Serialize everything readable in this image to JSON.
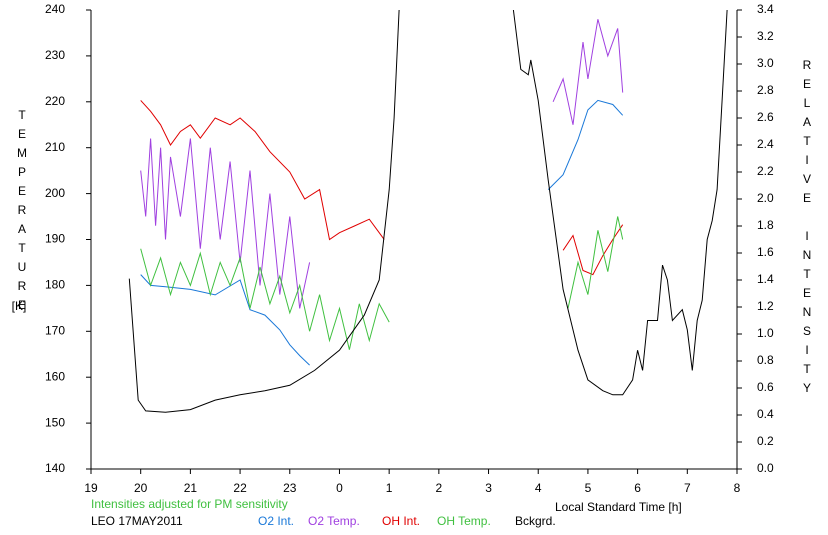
{
  "chart_data": {
    "type": "line",
    "ylabel": "TEMPERATURE",
    "yunit": "[K]",
    "y2label": "RELATIVE INTENSITY",
    "xlabel": "Local Standard Time [h]",
    "note": "Intensities adjusted for PM sensitivity",
    "station": "LEO 17MAY2011",
    "xlim": [
      19,
      32
    ],
    "xticks": [
      19,
      20,
      21,
      22,
      23,
      {
        "value": 24,
        "label": "0"
      },
      {
        "value": 25,
        "label": "1"
      },
      {
        "value": 26,
        "label": "2"
      },
      {
        "value": 27,
        "label": "3"
      },
      {
        "value": 28,
        "label": "4"
      },
      {
        "value": 29,
        "label": "5"
      },
      {
        "value": 30,
        "label": "6"
      },
      {
        "value": 31,
        "label": "7"
      },
      {
        "value": 32,
        "label": "8"
      }
    ],
    "ylim": [
      140,
      240
    ],
    "yticks": [
      140,
      150,
      160,
      170,
      180,
      190,
      200,
      210,
      220,
      230,
      240
    ],
    "y2lim": [
      0,
      3.4
    ],
    "y2ticks": [
      {
        "value": 0,
        "label": "0.0"
      },
      0.2,
      0.4,
      0.6,
      0.8,
      {
        "value": 1,
        "label": "1.0"
      },
      1.2,
      1.4,
      1.6,
      1.8,
      {
        "value": 2,
        "label": "2.0"
      },
      2.2,
      2.4,
      2.6,
      2.8,
      {
        "value": 3,
        "label": "3.0"
      },
      3.2,
      3.4
    ],
    "series": [
      {
        "name": "O2 Int.",
        "color": "#1a78d8",
        "axis": "y2",
        "x": [
          20.0,
          20.2,
          20.5,
          21.0,
          21.5,
          22.0,
          22.2,
          22.5,
          22.8,
          23.0,
          23.2,
          23.4,
          26.0,
          28.2,
          28.5,
          28.8,
          29.0,
          29.2,
          29.5,
          29.7
        ],
        "values": [
          1.44,
          1.36,
          1.35,
          1.33,
          1.29,
          1.4,
          1.18,
          1.14,
          1.03,
          0.92,
          0.84,
          0.77,
          null,
          2.07,
          2.18,
          2.44,
          2.66,
          2.73,
          2.7,
          2.62
        ]
      },
      {
        "name": "O2 Temp.",
        "color": "#a040e0",
        "axis": "y",
        "x": [
          20.0,
          20.1,
          20.2,
          20.3,
          20.4,
          20.5,
          20.6,
          20.8,
          21.0,
          21.2,
          21.4,
          21.6,
          21.8,
          22.0,
          22.2,
          22.4,
          22.6,
          22.8,
          23.0,
          23.2,
          23.4,
          26.0,
          28.3,
          28.5,
          28.7,
          28.9,
          29.0,
          29.2,
          29.4,
          29.6,
          29.7
        ],
        "values": [
          205,
          195,
          212,
          193,
          210,
          190,
          208,
          195,
          212,
          188,
          210,
          190,
          207,
          185,
          205,
          180,
          200,
          178,
          195,
          175,
          185,
          null,
          220,
          225,
          215,
          233,
          225,
          238,
          230,
          236,
          222
        ]
      },
      {
        "name": "OH Int.",
        "color": "#e00000",
        "axis": "y2",
        "x": [
          20.0,
          20.2,
          20.4,
          20.6,
          20.8,
          21.0,
          21.2,
          21.5,
          21.8,
          22.0,
          22.3,
          22.6,
          23.0,
          23.3,
          23.6,
          23.8,
          24.0,
          24.3,
          24.6,
          24.9,
          26.0,
          28.5,
          28.7,
          28.9,
          29.1,
          29.3,
          29.5,
          29.7
        ],
        "values": [
          2.73,
          2.65,
          2.55,
          2.4,
          2.5,
          2.55,
          2.45,
          2.6,
          2.55,
          2.6,
          2.5,
          2.35,
          2.2,
          2.0,
          2.07,
          1.7,
          1.75,
          1.8,
          1.85,
          1.7,
          null,
          1.62,
          1.73,
          1.47,
          1.44,
          1.58,
          1.7,
          1.81
        ]
      },
      {
        "name": "OH Temp.",
        "color": "#40c040",
        "axis": "y",
        "x": [
          20.0,
          20.2,
          20.4,
          20.6,
          20.8,
          21.0,
          21.2,
          21.4,
          21.6,
          21.8,
          22.0,
          22.2,
          22.4,
          22.6,
          22.8,
          23.0,
          23.2,
          23.4,
          23.6,
          23.8,
          24.0,
          24.2,
          24.4,
          24.6,
          24.8,
          25.0,
          26.0,
          28.6,
          28.8,
          29.0,
          29.2,
          29.4,
          29.6,
          29.7
        ],
        "values": [
          188,
          180,
          186,
          178,
          185,
          180,
          187,
          178,
          185,
          180,
          186,
          175,
          184,
          176,
          182,
          174,
          180,
          170,
          178,
          168,
          175,
          166,
          176,
          168,
          176,
          172,
          null,
          175,
          185,
          178,
          192,
          183,
          195,
          190
        ]
      },
      {
        "name": "Bckgrd.",
        "color": "#000000",
        "axis": "y2",
        "x": [
          19.77,
          19.95,
          20.1,
          20.5,
          21.0,
          21.5,
          22.0,
          22.5,
          23.0,
          23.5,
          24.0,
          24.5,
          24.8,
          25.0,
          25.1,
          25.2,
          26.0,
          27.5,
          27.65,
          27.8,
          27.85,
          28.0,
          28.2,
          28.5,
          28.8,
          29.0,
          29.3,
          29.5,
          29.7,
          29.9,
          30.0,
          30.1,
          30.2,
          30.4,
          30.5,
          30.6,
          30.7,
          30.9,
          31.0,
          31.1,
          31.2,
          31.3,
          31.4,
          31.5,
          31.6,
          31.7,
          31.8
        ],
        "values": [
          1.41,
          0.51,
          0.43,
          0.42,
          0.44,
          0.51,
          0.55,
          0.58,
          0.62,
          0.73,
          0.88,
          1.14,
          1.4,
          2.07,
          2.6,
          3.4,
          null,
          3.4,
          2.96,
          2.92,
          3.03,
          2.73,
          2.14,
          1.33,
          0.88,
          0.66,
          0.58,
          0.55,
          0.55,
          0.66,
          0.88,
          0.73,
          1.1,
          1.1,
          1.51,
          1.4,
          1.1,
          1.18,
          1.03,
          0.73,
          1.1,
          1.25,
          1.7,
          1.84,
          2.07,
          2.73,
          3.4
        ]
      }
    ]
  }
}
